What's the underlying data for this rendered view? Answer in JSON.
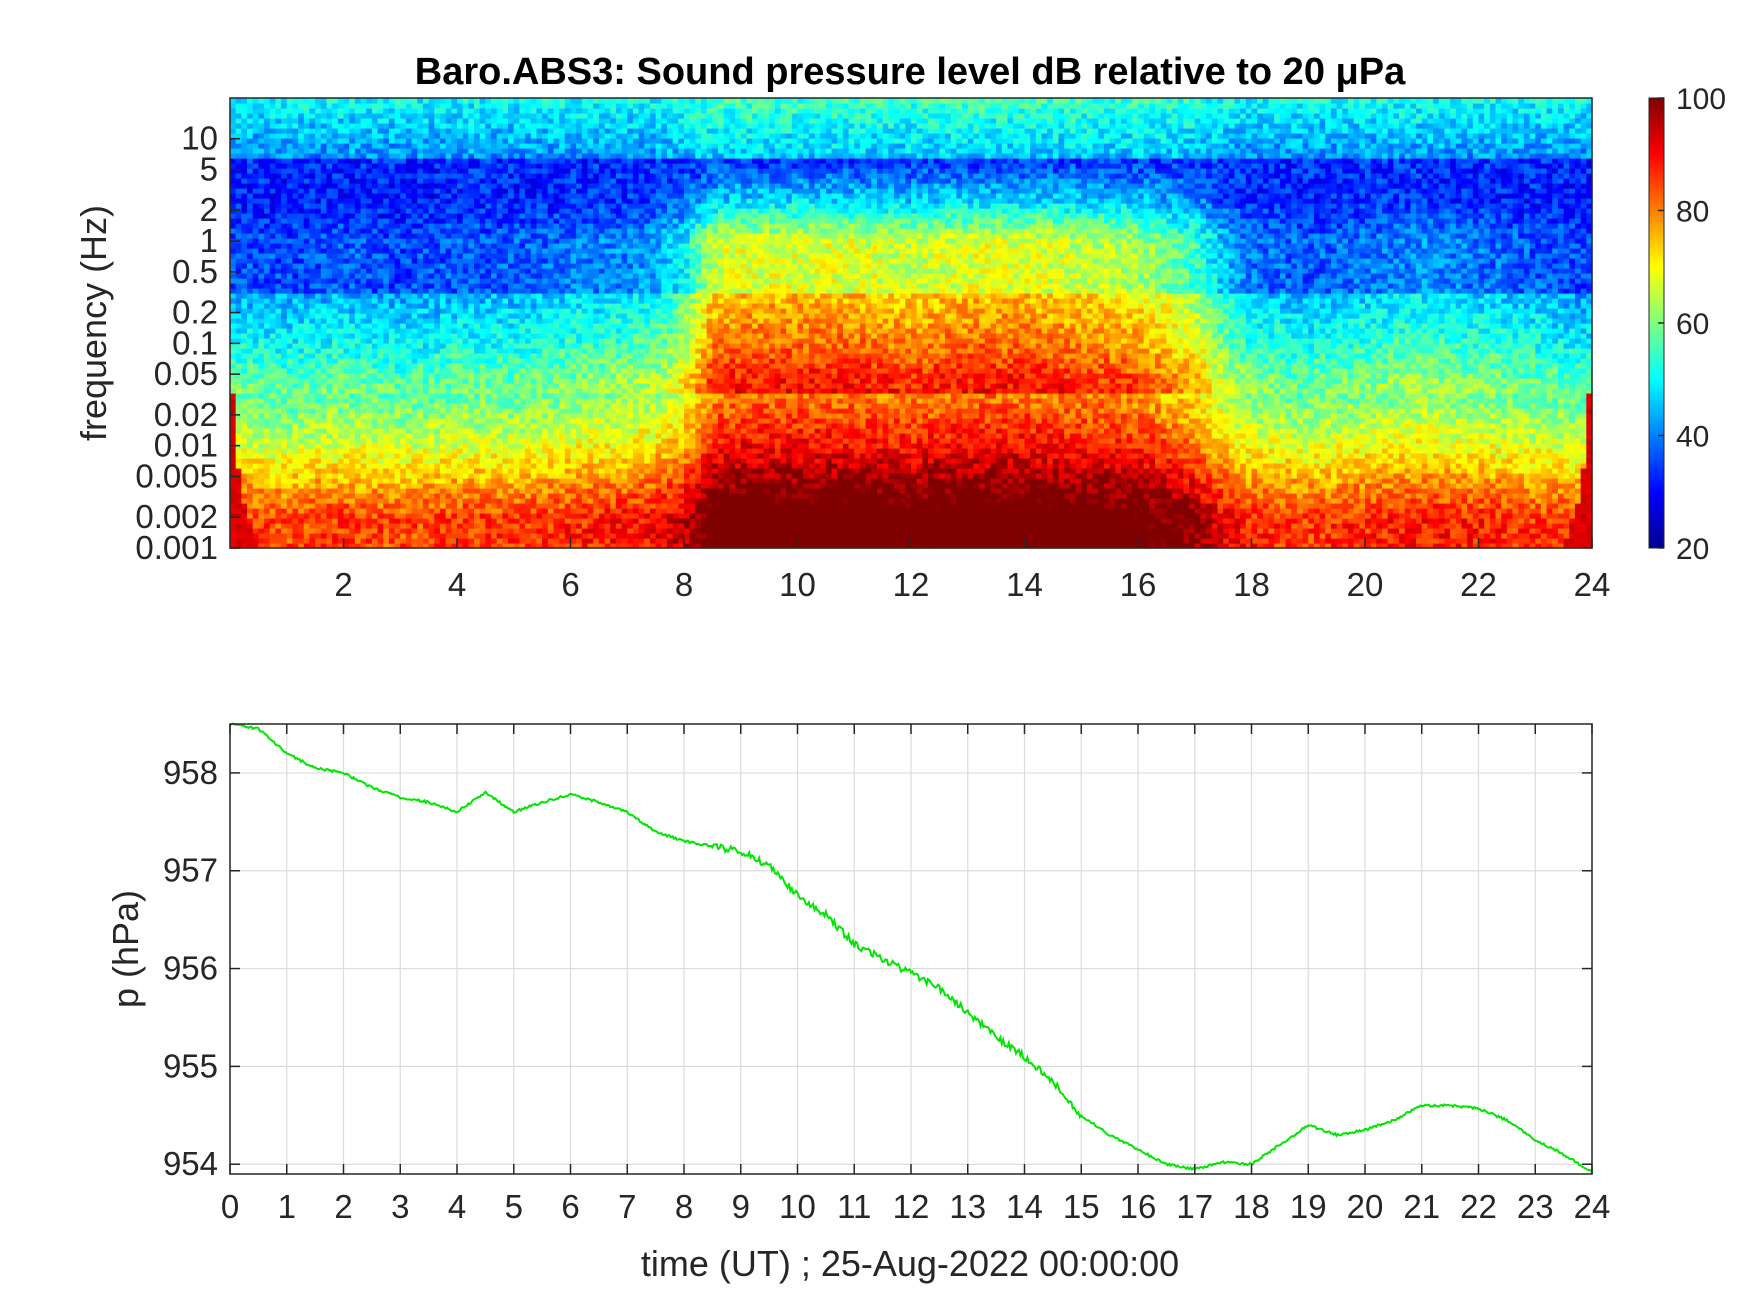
{
  "chart_data": [
    {
      "type": "heatmap",
      "title": "Baro.ABS3: Sound pressure level dB relative to 20 μPa",
      "xlabel": "",
      "ylabel": "frequency (Hz)",
      "xlim": [
        0,
        24
      ],
      "x_ticks": [
        "2",
        "4",
        "6",
        "8",
        "10",
        "12",
        "14",
        "16",
        "18",
        "20",
        "22",
        "24"
      ],
      "y_scale": "log",
      "ylim": [
        0.001,
        25
      ],
      "y_ticks": [
        "0.001",
        "0.002",
        "0.005",
        "0.01",
        "0.02",
        "0.05",
        "0.1",
        "0.2",
        "0.5",
        "1",
        "2",
        "5",
        "10"
      ],
      "colormap": "jet",
      "colorbar": {
        "range": [
          20,
          100
        ],
        "ticks": [
          "20",
          "40",
          "60",
          "80",
          "100"
        ]
      },
      "activity_profile": {
        "x": [
          0,
          1,
          2,
          3,
          4,
          5,
          6,
          7,
          7.5,
          8,
          8.5,
          9,
          10,
          11,
          12,
          13,
          14,
          15,
          16,
          17,
          17.5,
          18,
          19,
          20,
          21,
          22,
          23,
          24
        ],
        "level": [
          0.25,
          0.2,
          0.25,
          0.2,
          0.25,
          0.25,
          0.3,
          0.35,
          0.4,
          0.55,
          0.95,
          1.0,
          1.0,
          1.0,
          0.95,
          1.0,
          1.0,
          0.95,
          0.9,
          0.7,
          0.45,
          0.3,
          0.25,
          0.3,
          0.35,
          0.3,
          0.25,
          0.2
        ]
      }
    },
    {
      "type": "line",
      "title": "",
      "xlabel": "time (UT) ; 25-Aug-2022 00:00:00",
      "ylabel": "p (hPa)",
      "xlim": [
        0,
        24
      ],
      "ylim": [
        953.9,
        958.5
      ],
      "x_ticks": [
        "0",
        "1",
        "2",
        "3",
        "4",
        "5",
        "6",
        "7",
        "8",
        "9",
        "10",
        "11",
        "12",
        "13",
        "14",
        "15",
        "16",
        "17",
        "18",
        "19",
        "20",
        "21",
        "22",
        "23",
        "24"
      ],
      "y_ticks": [
        "954",
        "955",
        "956",
        "957",
        "958"
      ],
      "grid": true,
      "series_color": "#00e600",
      "x": [
        0,
        0.5,
        1,
        1.5,
        2,
        2.5,
        3,
        3.5,
        4,
        4.5,
        5,
        5.5,
        6,
        6.5,
        7,
        7.5,
        8,
        8.5,
        9,
        9.5,
        10,
        10.5,
        11,
        11.5,
        12,
        12.5,
        13,
        13.5,
        14,
        14.5,
        15,
        15.5,
        16,
        16.5,
        17,
        17.5,
        18,
        18.5,
        19,
        19.5,
        20,
        20.5,
        21,
        21.5,
        22,
        22.5,
        23,
        23.5,
        24
      ],
      "y": [
        958.5,
        958.45,
        958.2,
        958.05,
        958.0,
        957.85,
        957.75,
        957.7,
        957.6,
        957.8,
        957.6,
        957.7,
        957.78,
        957.7,
        957.6,
        957.4,
        957.3,
        957.25,
        957.2,
        957.05,
        956.75,
        956.55,
        956.25,
        956.1,
        955.95,
        955.8,
        955.55,
        955.3,
        955.1,
        954.85,
        954.5,
        954.3,
        954.15,
        954.0,
        953.95,
        954.02,
        954.0,
        954.2,
        954.4,
        954.3,
        954.35,
        954.45,
        954.6,
        954.6,
        954.57,
        954.45,
        954.25,
        954.1,
        953.92
      ]
    }
  ]
}
